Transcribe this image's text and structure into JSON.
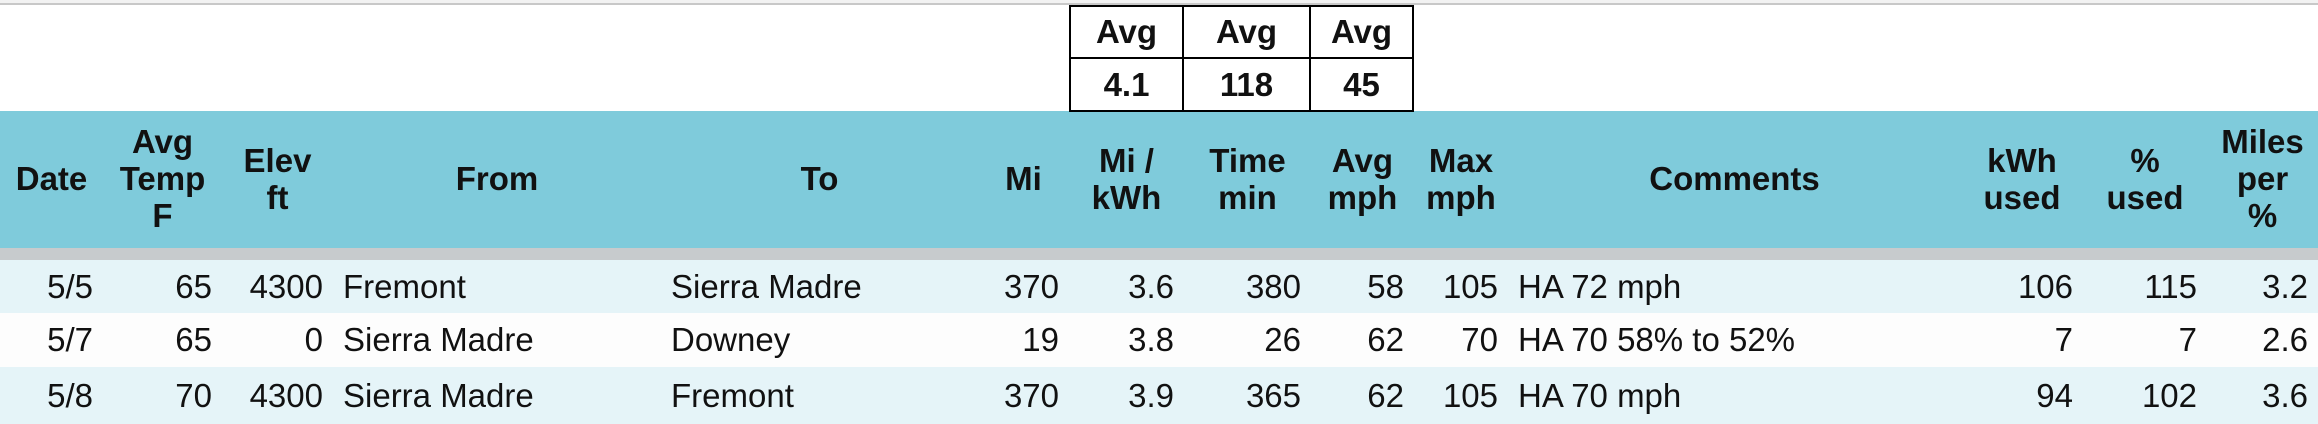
{
  "summary": {
    "labels": [
      "Avg",
      "Avg",
      "Avg"
    ],
    "values": [
      4.1,
      118,
      45
    ]
  },
  "table": {
    "header": [
      "Date",
      "Avg\nTemp\nF",
      "Elev\nft",
      "From",
      "To",
      "Mi",
      "Mi /\nkWh",
      "Time\nmin",
      "Avg\nmph",
      "Max\nmph",
      "Comments",
      "kWh\nused",
      "%\nused",
      "Miles\nper\n%"
    ],
    "rows": [
      [
        "5/5",
        65,
        4300,
        "Fremont",
        "Sierra Madre",
        370,
        3.6,
        380,
        58,
        105,
        "HA 72 mph",
        106,
        115,
        3.2
      ],
      [
        "5/7",
        65,
        0,
        "Sierra Madre",
        "Downey",
        19,
        3.8,
        26,
        62,
        70,
        "HA 70 58% to 52%",
        7,
        7,
        2.6
      ],
      [
        "5/8",
        70,
        4300,
        "Sierra Madre",
        "Fremont",
        370,
        3.9,
        365,
        62,
        105,
        "HA 70 mph",
        94,
        102,
        3.6
      ]
    ]
  }
}
